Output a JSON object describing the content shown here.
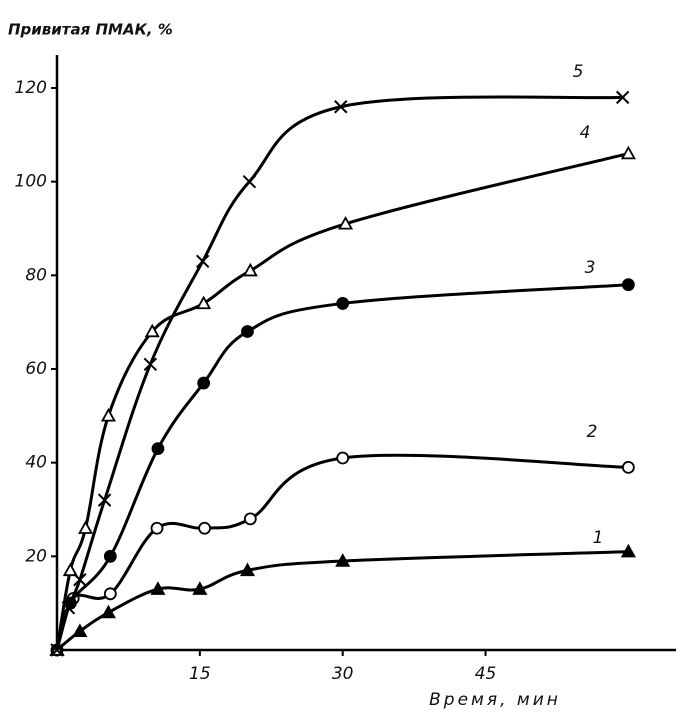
{
  "chart_data": {
    "type": "line",
    "title": "Привитая ПМАК, %",
    "x_label": "Время, мин",
    "xlim": [
      0,
      65
    ],
    "xticks": [
      15,
      30,
      45
    ],
    "ylim": [
      0,
      120
    ],
    "yticks": [
      20,
      40,
      60,
      80,
      100,
      120
    ],
    "series": [
      {
        "name": "1",
        "color": "#000000",
        "marker": "triangle-filled",
        "x": [
          0,
          2.4,
          5.4,
          10.6,
          15,
          20,
          30,
          60
        ],
        "values": [
          0,
          4,
          8,
          13,
          13,
          17,
          19,
          21
        ]
      },
      {
        "name": "2",
        "color": "#000000",
        "marker": "circle-open",
        "x": [
          0,
          1.7,
          5.6,
          10.5,
          15.5,
          20.3,
          30,
          60
        ],
        "values": [
          0,
          11,
          12,
          26,
          26,
          28,
          41,
          39
        ]
      },
      {
        "name": "3",
        "color": "#000000",
        "marker": "circle-filled",
        "x": [
          0,
          1.4,
          5.6,
          10.6,
          15.4,
          20,
          30,
          60
        ],
        "values": [
          0,
          10,
          20,
          43,
          57,
          68,
          74,
          78
        ]
      },
      {
        "name": "4",
        "color": "#000000",
        "marker": "triangle-open",
        "x": [
          0,
          1.4,
          3,
          5.4,
          10,
          15.4,
          20.3,
          30.3,
          60
        ],
        "values": [
          0,
          17,
          26,
          50,
          68,
          74,
          81,
          91,
          106
        ]
      },
      {
        "name": "5",
        "color": "#000000",
        "marker": "cross",
        "x": [
          0,
          1.2,
          2.4,
          5,
          9.8,
          15.3,
          20.2,
          29.8,
          59.4
        ],
        "values": [
          0,
          9,
          15,
          32,
          61,
          83,
          100,
          116,
          118
        ]
      }
    ]
  }
}
